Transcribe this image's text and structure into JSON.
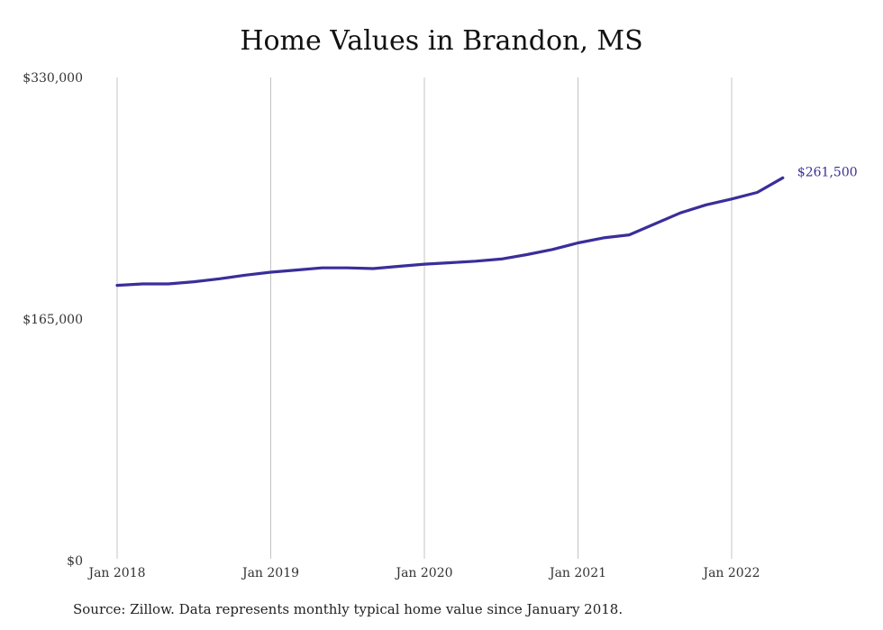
{
  "chart_data": {
    "type": "line",
    "title": "Home Values in Brandon, MS",
    "xlabel": "",
    "ylabel": "",
    "ylim": [
      0,
      330000
    ],
    "y_ticks": [
      {
        "value": 0,
        "label": "$0"
      },
      {
        "value": 165000,
        "label": "$165,000"
      },
      {
        "value": 330000,
        "label": "$330,000"
      }
    ],
    "x_ticks": [
      {
        "value": "2018-01",
        "label": "Jan 2018"
      },
      {
        "value": "2019-01",
        "label": "Jan 2019"
      },
      {
        "value": "2020-01",
        "label": "Jan 2020"
      },
      {
        "value": "2021-01",
        "label": "Jan 2021"
      },
      {
        "value": "2022-01",
        "label": "Jan 2022"
      }
    ],
    "grid": "vertical",
    "series": [
      {
        "color": "#3a2e9a",
        "end_label": "$261,500",
        "points": [
          {
            "x": "2018-01",
            "y": 188000
          },
          {
            "x": "2018-03",
            "y": 189000
          },
          {
            "x": "2018-05",
            "y": 189000
          },
          {
            "x": "2018-07",
            "y": 190500
          },
          {
            "x": "2018-09",
            "y": 192500
          },
          {
            "x": "2018-11",
            "y": 195000
          },
          {
            "x": "2019-01",
            "y": 197000
          },
          {
            "x": "2019-03",
            "y": 198500
          },
          {
            "x": "2019-05",
            "y": 200000
          },
          {
            "x": "2019-07",
            "y": 200000
          },
          {
            "x": "2019-09",
            "y": 199500
          },
          {
            "x": "2019-11",
            "y": 201000
          },
          {
            "x": "2020-01",
            "y": 202500
          },
          {
            "x": "2020-03",
            "y": 203500
          },
          {
            "x": "2020-05",
            "y": 204500
          },
          {
            "x": "2020-07",
            "y": 206000
          },
          {
            "x": "2020-09",
            "y": 209000
          },
          {
            "x": "2020-11",
            "y": 212500
          },
          {
            "x": "2021-01",
            "y": 217000
          },
          {
            "x": "2021-03",
            "y": 220500
          },
          {
            "x": "2021-05",
            "y": 222500
          },
          {
            "x": "2021-07",
            "y": 230000
          },
          {
            "x": "2021-09",
            "y": 237500
          },
          {
            "x": "2021-11",
            "y": 243000
          },
          {
            "x": "2022-01",
            "y": 247000
          },
          {
            "x": "2022-03",
            "y": 251500
          },
          {
            "x": "2022-05",
            "y": 261500
          }
        ]
      }
    ]
  },
  "source_note": "Source: Zillow. Data represents monthly typical home value since January 2018."
}
